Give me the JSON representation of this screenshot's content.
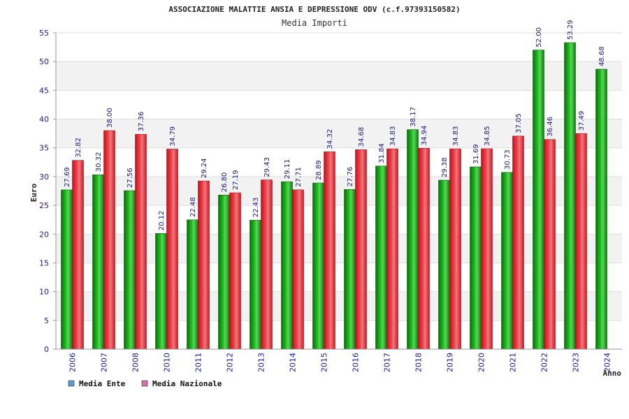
{
  "chart_data": {
    "type": "bar",
    "title": "ASSOCIAZIONE MALATTIE ANSIA E DEPRESSIONE ODV (c.f.97393150582)",
    "subtitle": "Media Importi",
    "xlabel": "Anno",
    "ylabel": "Euro",
    "ylim": [
      0,
      55
    ],
    "yticks": [
      0,
      5,
      10,
      15,
      20,
      25,
      30,
      35,
      40,
      45,
      50,
      55
    ],
    "grid": true,
    "legend_position": "bottom-left",
    "categories": [
      "2006",
      "2007",
      "2008",
      "2010",
      "2011",
      "2012",
      "2013",
      "2014",
      "2015",
      "2016",
      "2017",
      "2018",
      "2019",
      "2020",
      "2021",
      "2022",
      "2023",
      "2024"
    ],
    "series": [
      {
        "name": "Media Ente",
        "color": "#1aa01a",
        "legend_color": "#5b9bd5",
        "values": [
          27.69,
          30.32,
          27.56,
          20.12,
          22.48,
          26.8,
          22.43,
          29.11,
          28.89,
          27.76,
          31.84,
          38.17,
          29.38,
          31.69,
          30.73,
          52.0,
          53.29,
          48.68
        ],
        "labels": [
          "27.69",
          "30.32",
          "27.56",
          "20.12",
          "22.48",
          "26.80",
          "22.43",
          "29.11",
          "28.89",
          "27.76",
          "31.84",
          "38.17",
          "29.38",
          "31.69",
          "30.73",
          "52.00",
          "53.29",
          "48.68"
        ]
      },
      {
        "name": "Media Nazionale",
        "color": "#e0202a",
        "legend_color": "#d96fa8",
        "values": [
          32.82,
          38.0,
          37.36,
          34.79,
          29.24,
          27.19,
          29.43,
          27.71,
          34.32,
          34.68,
          34.83,
          34.94,
          34.83,
          34.85,
          37.05,
          36.46,
          37.49,
          null
        ],
        "labels": [
          "32.82",
          "38.00",
          "37.36",
          "34.79",
          "29.24",
          "27.19",
          "29.43",
          "27.71",
          "34.32",
          "34.68",
          "34.83",
          "34.94",
          "34.83",
          "34.85",
          "37.05",
          "36.46",
          "37.49",
          ""
        ]
      }
    ]
  }
}
